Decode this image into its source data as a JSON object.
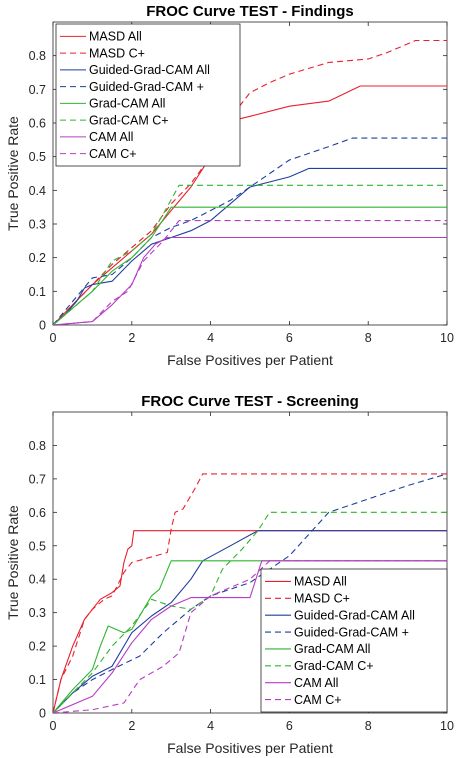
{
  "chart_data": [
    {
      "type": "line",
      "title": "FROC Curve TEST - Findings",
      "xlabel": "False Positives per Patient",
      "ylabel": "True Positive Rate",
      "xlim": [
        0,
        10
      ],
      "ylim": [
        0,
        0.9
      ],
      "xticks": [
        "0",
        "2",
        "4",
        "6",
        "8",
        "10"
      ],
      "yticks": [
        "0",
        "0.1",
        "0.2",
        "0.3",
        "0.4",
        "0.5",
        "0.6",
        "0.7",
        "0.8"
      ],
      "grid": false,
      "legend_position": "top-left",
      "series": [
        {
          "name": "MASD All",
          "color": "#e8212e",
          "dash": false,
          "points": [
            [
              0,
              0
            ],
            [
              0.5,
              0.06
            ],
            [
              1,
              0.12
            ],
            [
              1.5,
              0.17
            ],
            [
              2,
              0.22
            ],
            [
              2.5,
              0.27
            ],
            [
              3,
              0.34
            ],
            [
              3.5,
              0.41
            ],
            [
              4,
              0.5
            ],
            [
              4.3,
              0.6
            ],
            [
              5,
              0.62
            ],
            [
              6,
              0.65
            ],
            [
              7,
              0.665
            ],
            [
              7.8,
              0.71
            ],
            [
              10,
              0.71
            ]
          ]
        },
        {
          "name": "MASD C+",
          "color": "#e8212e",
          "dash": true,
          "points": [
            [
              0,
              0
            ],
            [
              0.5,
              0.06
            ],
            [
              1,
              0.12
            ],
            [
              1.5,
              0.18
            ],
            [
              2,
              0.23
            ],
            [
              2.5,
              0.28
            ],
            [
              3,
              0.36
            ],
            [
              3.5,
              0.42
            ],
            [
              4,
              0.5
            ],
            [
              4.4,
              0.6
            ],
            [
              5,
              0.69
            ],
            [
              5.5,
              0.72
            ],
            [
              6,
              0.745
            ],
            [
              7,
              0.78
            ],
            [
              8,
              0.79
            ],
            [
              8.5,
              0.81
            ],
            [
              9.2,
              0.845
            ],
            [
              10,
              0.845
            ]
          ]
        },
        {
          "name": "Guided-Grad-CAM All",
          "color": "#1f3f9e",
          "dash": false,
          "points": [
            [
              0,
              0
            ],
            [
              0.3,
              0.03
            ],
            [
              0.6,
              0.07
            ],
            [
              0.8,
              0.11
            ],
            [
              1,
              0.12
            ],
            [
              1.5,
              0.13
            ],
            [
              2,
              0.19
            ],
            [
              2.5,
              0.24
            ],
            [
              3,
              0.26
            ],
            [
              3.5,
              0.28
            ],
            [
              4,
              0.31
            ],
            [
              4.5,
              0.36
            ],
            [
              5,
              0.41
            ],
            [
              6,
              0.44
            ],
            [
              6.5,
              0.465
            ],
            [
              10,
              0.465
            ]
          ]
        },
        {
          "name": "Guided-Grad-CAM +",
          "color": "#1f3f9e",
          "dash": true,
          "points": [
            [
              0,
              0
            ],
            [
              0.5,
              0.07
            ],
            [
              1,
              0.14
            ],
            [
              1.5,
              0.15
            ],
            [
              2,
              0.2
            ],
            [
              2.5,
              0.26
            ],
            [
              3,
              0.29
            ],
            [
              3.5,
              0.31
            ],
            [
              4,
              0.34
            ],
            [
              4.5,
              0.37
            ],
            [
              5,
              0.41
            ],
            [
              5.5,
              0.45
            ],
            [
              6,
              0.49
            ],
            [
              7,
              0.53
            ],
            [
              7.6,
              0.555
            ],
            [
              10,
              0.555
            ]
          ]
        },
        {
          "name": "Grad-CAM All",
          "color": "#2fb52f",
          "dash": false,
          "points": [
            [
              0,
              0
            ],
            [
              0.5,
              0.05
            ],
            [
              1,
              0.1
            ],
            [
              1.5,
              0.16
            ],
            [
              2,
              0.2
            ],
            [
              2.5,
              0.26
            ],
            [
              3,
              0.35
            ],
            [
              10,
              0.35
            ]
          ]
        },
        {
          "name": "Grad-CAM C+",
          "color": "#2fb52f",
          "dash": true,
          "points": [
            [
              0,
              0
            ],
            [
              0.5,
              0.05
            ],
            [
              1,
              0.1
            ],
            [
              1.5,
              0.19
            ],
            [
              2,
              0.22
            ],
            [
              2.5,
              0.27
            ],
            [
              2.8,
              0.33
            ],
            [
              3.2,
              0.415
            ],
            [
              10,
              0.415
            ]
          ]
        },
        {
          "name": "CAM All",
          "color": "#b63bc4",
          "dash": false,
          "points": [
            [
              0,
              0
            ],
            [
              1,
              0.01
            ],
            [
              1.5,
              0.06
            ],
            [
              2,
              0.12
            ],
            [
              2.3,
              0.2
            ],
            [
              2.6,
              0.24
            ],
            [
              2.9,
              0.26
            ],
            [
              10,
              0.26
            ]
          ]
        },
        {
          "name": "CAM C+",
          "color": "#b63bc4",
          "dash": true,
          "points": [
            [
              0,
              0
            ],
            [
              1,
              0.01
            ],
            [
              1.5,
              0.07
            ],
            [
              1.9,
              0.1
            ],
            [
              2.3,
              0.19
            ],
            [
              2.8,
              0.25
            ],
            [
              3.2,
              0.31
            ],
            [
              10,
              0.31
            ]
          ]
        }
      ]
    },
    {
      "type": "line",
      "title": "FROC Curve TEST - Screening",
      "xlabel": "False Positives per Patient",
      "ylabel": "True Positive Rate",
      "xlim": [
        0,
        10
      ],
      "ylim": [
        0,
        0.9
      ],
      "xticks": [
        "0",
        "2",
        "4",
        "6",
        "8",
        "10"
      ],
      "yticks": [
        "0",
        "0.1",
        "0.2",
        "0.3",
        "0.4",
        "0.5",
        "0.6",
        "0.7",
        "0.8"
      ],
      "grid": false,
      "legend_position": "bottom-right",
      "series": [
        {
          "name": "MASD All",
          "color": "#e8212e",
          "dash": false,
          "points": [
            [
              0,
              0
            ],
            [
              0.2,
              0.1
            ],
            [
              0.5,
              0.2
            ],
            [
              0.8,
              0.28
            ],
            [
              1,
              0.31
            ],
            [
              1.2,
              0.34
            ],
            [
              1.5,
              0.36
            ],
            [
              1.7,
              0.38
            ],
            [
              1.8,
              0.45
            ],
            [
              1.9,
              0.49
            ],
            [
              2,
              0.5
            ],
            [
              2.05,
              0.545
            ],
            [
              10,
              0.545
            ]
          ]
        },
        {
          "name": "MASD C+",
          "color": "#e8212e",
          "dash": true,
          "points": [
            [
              0,
              0
            ],
            [
              0.2,
              0.1
            ],
            [
              0.5,
              0.17
            ],
            [
              0.8,
              0.28
            ],
            [
              1,
              0.31
            ],
            [
              1.3,
              0.34
            ],
            [
              1.5,
              0.35
            ],
            [
              1.8,
              0.42
            ],
            [
              2,
              0.45
            ],
            [
              2.3,
              0.46
            ],
            [
              2.9,
              0.48
            ],
            [
              3,
              0.55
            ],
            [
              3.1,
              0.6
            ],
            [
              3.3,
              0.61
            ],
            [
              3.6,
              0.67
            ],
            [
              3.8,
              0.715
            ],
            [
              10,
              0.715
            ]
          ]
        },
        {
          "name": "Guided-Grad-CAM All",
          "color": "#1f3f9e",
          "dash": false,
          "points": [
            [
              0,
              0
            ],
            [
              0.5,
              0.06
            ],
            [
              1,
              0.11
            ],
            [
              1.5,
              0.14
            ],
            [
              2,
              0.24
            ],
            [
              2.5,
              0.29
            ],
            [
              3,
              0.33
            ],
            [
              3.5,
              0.4
            ],
            [
              3.8,
              0.455
            ],
            [
              4.5,
              0.5
            ],
            [
              5.2,
              0.545
            ],
            [
              10,
              0.545
            ]
          ]
        },
        {
          "name": "Guided-Grad-CAM +",
          "color": "#1f3f9e",
          "dash": true,
          "points": [
            [
              0,
              0
            ],
            [
              0.5,
              0.06
            ],
            [
              1,
              0.1
            ],
            [
              1.5,
              0.13
            ],
            [
              2.2,
              0.17
            ],
            [
              2.8,
              0.24
            ],
            [
              3.5,
              0.31
            ],
            [
              4,
              0.35
            ],
            [
              5,
              0.39
            ],
            [
              6,
              0.47
            ],
            [
              7,
              0.6
            ],
            [
              8,
              0.64
            ],
            [
              9,
              0.68
            ],
            [
              10,
              0.715
            ]
          ]
        },
        {
          "name": "Grad-CAM All",
          "color": "#2fb52f",
          "dash": false,
          "points": [
            [
              0,
              0
            ],
            [
              0.5,
              0.07
            ],
            [
              1,
              0.13
            ],
            [
              1.2,
              0.2
            ],
            [
              1.4,
              0.26
            ],
            [
              1.8,
              0.24
            ],
            [
              2,
              0.25
            ],
            [
              2.5,
              0.35
            ],
            [
              2.7,
              0.37
            ],
            [
              3,
              0.455
            ],
            [
              10,
              0.455
            ]
          ]
        },
        {
          "name": "Grad-CAM C+",
          "color": "#2fb52f",
          "dash": true,
          "points": [
            [
              0,
              0
            ],
            [
              0.5,
              0.06
            ],
            [
              1,
              0.12
            ],
            [
              1.5,
              0.2
            ],
            [
              2,
              0.26
            ],
            [
              2.5,
              0.34
            ],
            [
              3,
              0.32
            ],
            [
              3.5,
              0.31
            ],
            [
              4,
              0.35
            ],
            [
              4.3,
              0.43
            ],
            [
              4.8,
              0.49
            ],
            [
              5.2,
              0.545
            ],
            [
              5.5,
              0.6
            ],
            [
              10,
              0.6
            ]
          ]
        },
        {
          "name": "CAM All",
          "color": "#b63bc4",
          "dash": false,
          "points": [
            [
              0,
              0
            ],
            [
              1,
              0.05
            ],
            [
              1.5,
              0.12
            ],
            [
              2,
              0.21
            ],
            [
              2.5,
              0.28
            ],
            [
              3,
              0.32
            ],
            [
              3.5,
              0.345
            ],
            [
              5,
              0.345
            ],
            [
              5.3,
              0.455
            ],
            [
              10,
              0.455
            ]
          ]
        },
        {
          "name": "CAM C+",
          "color": "#b63bc4",
          "dash": true,
          "points": [
            [
              0,
              0
            ],
            [
              1,
              0.01
            ],
            [
              1.8,
              0.03
            ],
            [
              2.2,
              0.1
            ],
            [
              2.8,
              0.14
            ],
            [
              3.2,
              0.18
            ],
            [
              3.5,
              0.3
            ],
            [
              4,
              0.35
            ],
            [
              5,
              0.4
            ],
            [
              5.5,
              0.455
            ],
            [
              10,
              0.455
            ]
          ]
        }
      ]
    }
  ]
}
